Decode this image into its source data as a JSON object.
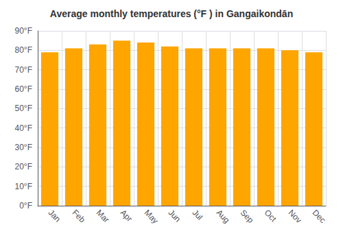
{
  "chart_data": {
    "type": "bar",
    "title": "Average monthly temperatures (°F ) in Gangaikondān",
    "categories": [
      "Jan",
      "Feb",
      "Mar",
      "Apr",
      "May",
      "Jun",
      "Jul",
      "Aug",
      "Sep",
      "Oct",
      "Nov",
      "Dec"
    ],
    "values": [
      79,
      81,
      83,
      85,
      84,
      82,
      81,
      81,
      81,
      81,
      80,
      79
    ],
    "color": "#FFA500",
    "ylim": [
      0,
      90
    ],
    "yticks": [
      {
        "value": 0,
        "label": "0°F"
      },
      {
        "value": 10,
        "label": "10°F"
      },
      {
        "value": 20,
        "label": "20°F"
      },
      {
        "value": 30,
        "label": "30°F"
      },
      {
        "value": 40,
        "label": "40°F"
      },
      {
        "value": 50,
        "label": "50°F"
      },
      {
        "value": 60,
        "label": "60°F"
      },
      {
        "value": 70,
        "label": "70°F"
      },
      {
        "value": 80,
        "label": "80°F"
      },
      {
        "value": 90,
        "label": "90°F"
      }
    ],
    "grid": true
  }
}
